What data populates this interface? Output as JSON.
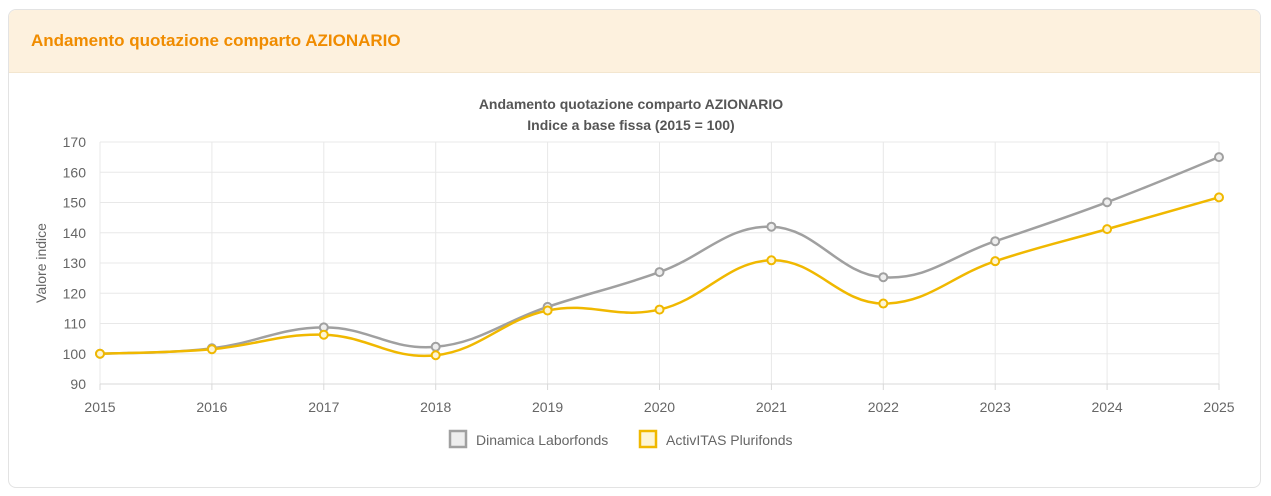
{
  "header": {
    "title": "Andamento quotazione comparto AZIONARIO"
  },
  "chart_data": {
    "type": "line",
    "title": "Andamento quotazione comparto AZIONARIO",
    "subtitle": "Indice a base fissa (2015 = 100)",
    "ylabel": "Valore indice",
    "xlabel": "",
    "categories": [
      "2015",
      "2016",
      "2017",
      "2018",
      "2019",
      "2020",
      "2021",
      "2022",
      "2023",
      "2024",
      "2025"
    ],
    "ylim": [
      90,
      170
    ],
    "yticks": [
      90,
      100,
      110,
      120,
      130,
      140,
      150,
      160,
      170
    ],
    "grid": true,
    "legend_position": "bottom",
    "series": [
      {
        "name": "Dinamica Laborfonds",
        "color": "#a0a0a0",
        "fill": "#eeeeee",
        "values": [
          100,
          101.8,
          108.7,
          102.3,
          115.5,
          127,
          142,
          125.3,
          137.2,
          150.1,
          165
        ]
      },
      {
        "name": "ActivITAS Plurifonds",
        "color": "#f0b800",
        "fill": "#fdf5d5",
        "values": [
          100,
          101.5,
          106.3,
          99.5,
          114.3,
          114.6,
          130.9,
          116.6,
          130.6,
          141.2,
          151.7
        ]
      }
    ]
  }
}
